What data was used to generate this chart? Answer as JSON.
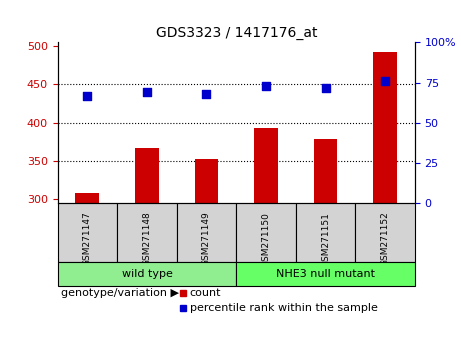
{
  "title": "GDS3323 / 1417176_at",
  "samples": [
    "GSM271147",
    "GSM271148",
    "GSM271149",
    "GSM271150",
    "GSM271151",
    "GSM271152"
  ],
  "bar_values": [
    308,
    367,
    353,
    393,
    379,
    492
  ],
  "dot_values": [
    435,
    440,
    438,
    448,
    445,
    455
  ],
  "bar_color": "#cc0000",
  "dot_color": "#0000cc",
  "ylim_left": [
    295,
    505
  ],
  "ylim_right": [
    0,
    100
  ],
  "yticks_left": [
    300,
    350,
    400,
    450,
    500
  ],
  "yticks_right": [
    0,
    25,
    50,
    75,
    100
  ],
  "grid_values": [
    350,
    400,
    450
  ],
  "groups": [
    {
      "label": "wild type",
      "samples": [
        "GSM271147",
        "GSM271148",
        "GSM271149"
      ],
      "color": "#90ee90"
    },
    {
      "label": "NHE3 null mutant",
      "samples": [
        "GSM271150",
        "GSM271151",
        "GSM271152"
      ],
      "color": "#66ff66"
    }
  ],
  "genotype_label": "genotype/variation",
  "legend_count": "count",
  "legend_percentile": "percentile rank within the sample",
  "bar_width": 0.4
}
